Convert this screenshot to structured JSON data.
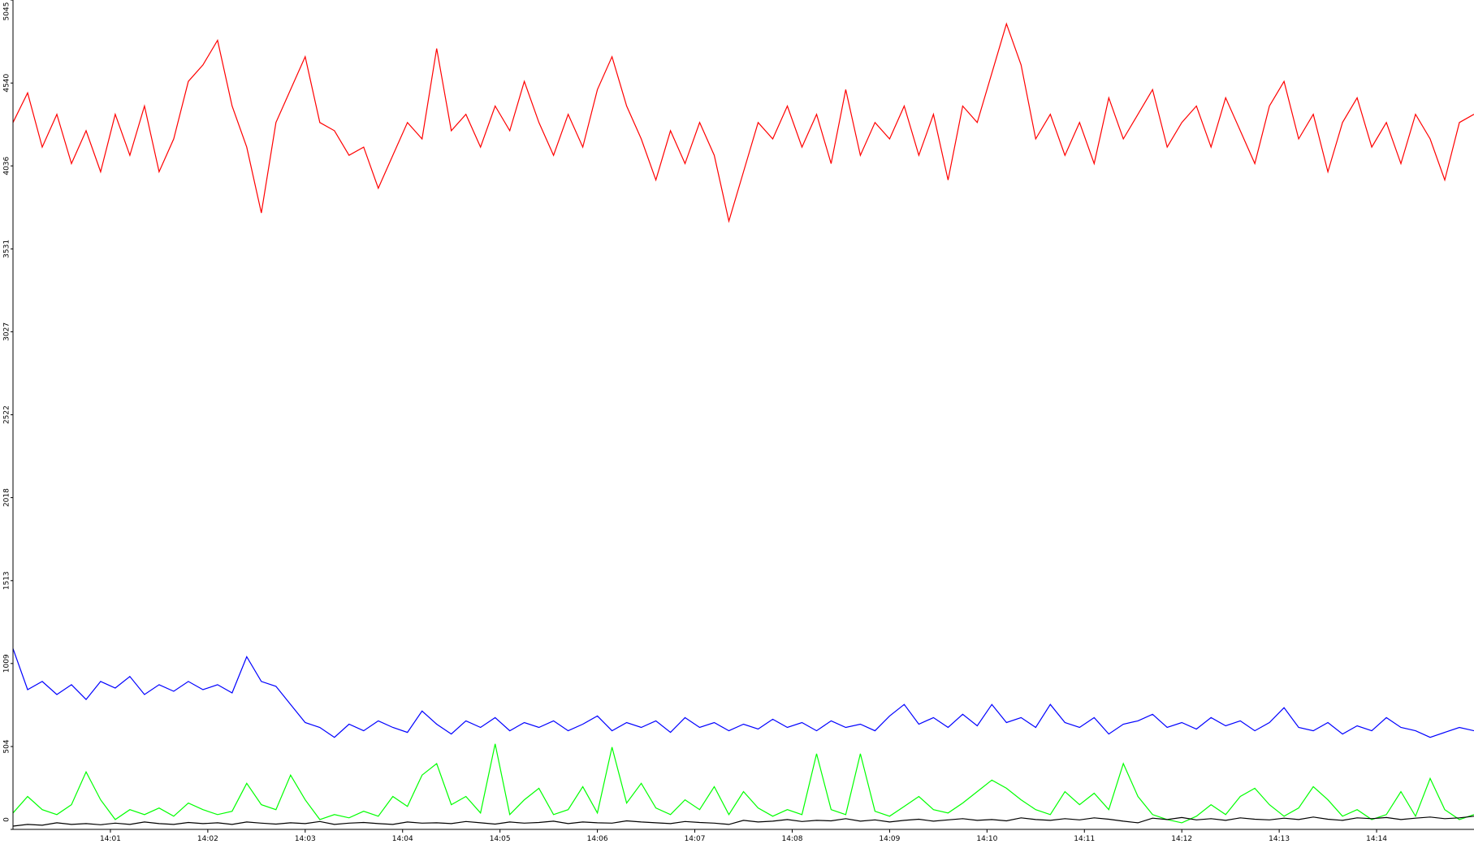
{
  "chart_data": {
    "type": "line",
    "x": [
      0,
      0.15,
      0.3,
      0.45,
      0.6,
      0.75,
      0.9,
      1.05,
      1.2,
      1.35,
      1.5,
      1.65,
      1.8,
      1.95,
      2.1,
      2.25,
      2.4,
      2.55,
      2.7,
      2.85,
      3,
      3.15,
      3.3,
      3.45,
      3.6,
      3.75,
      3.9,
      4.05,
      4.2,
      4.35,
      4.5,
      4.65,
      4.8,
      4.95,
      5.1,
      5.25,
      5.4,
      5.55,
      5.7,
      5.85,
      6,
      6.15,
      6.3,
      6.45,
      6.6,
      6.75,
      6.9,
      7.05,
      7.2,
      7.35,
      7.5,
      7.65,
      7.8,
      7.95,
      8.1,
      8.25,
      8.4,
      8.55,
      8.7,
      8.85,
      9,
      9.15,
      9.3,
      9.45,
      9.6,
      9.75,
      9.9,
      10.05,
      10.2,
      10.35,
      10.5,
      10.65,
      10.8,
      10.95,
      11.1,
      11.25,
      11.4,
      11.55,
      11.7,
      11.85,
      12,
      12.15,
      12.3,
      12.45,
      12.6,
      12.75,
      12.9,
      13.05,
      13.2,
      13.35,
      13.5,
      13.65,
      13.8,
      13.95,
      14.1,
      14.25,
      14.4,
      14.55,
      14.7,
      14.85,
      15
    ],
    "series": [
      {
        "color": "#ff0000",
        "values": [
          4300,
          4480,
          4150,
          4350,
          4050,
          4250,
          4000,
          4350,
          4100,
          4400,
          4000,
          4200,
          4550,
          4650,
          4800,
          4400,
          4150,
          3750,
          4300,
          4500,
          4700,
          4300,
          4250,
          4100,
          4150,
          3900,
          4100,
          4300,
          4200,
          4750,
          4250,
          4350,
          4150,
          4400,
          4250,
          4550,
          4300,
          4100,
          4350,
          4150,
          4500,
          4700,
          4400,
          4200,
          3950,
          4250,
          4050,
          4300,
          4100,
          3700,
          4000,
          4300,
          4200,
          4400,
          4150,
          4350,
          4050,
          4500,
          4100,
          4300,
          4200,
          4400,
          4100,
          4350,
          3950,
          4400,
          4300,
          4600,
          4900,
          4650,
          4200,
          4350,
          4100,
          4300,
          4050,
          4450,
          4200,
          4350,
          4500,
          4150,
          4300,
          4400,
          4150,
          4450,
          4250,
          4050,
          4400,
          4550,
          4200,
          4350,
          4000,
          4300,
          4450,
          4150,
          4300,
          4050,
          4350,
          4200,
          3950,
          4300,
          4350
        ]
      },
      {
        "color": "#0000ff",
        "values": [
          1100,
          850,
          900,
          820,
          880,
          790,
          900,
          860,
          930,
          820,
          880,
          840,
          900,
          850,
          880,
          830,
          1050,
          900,
          870,
          760,
          650,
          620,
          560,
          640,
          600,
          660,
          620,
          590,
          720,
          640,
          580,
          660,
          620,
          680,
          600,
          650,
          620,
          660,
          600,
          640,
          690,
          600,
          650,
          620,
          660,
          590,
          680,
          620,
          650,
          600,
          640,
          610,
          670,
          620,
          650,
          600,
          660,
          620,
          640,
          600,
          690,
          760,
          640,
          680,
          620,
          700,
          630,
          760,
          650,
          680,
          620,
          760,
          650,
          620,
          680,
          580,
          640,
          660,
          700,
          620,
          650,
          610,
          680,
          630,
          660,
          600,
          650,
          740,
          620,
          600,
          650,
          580,
          630,
          600,
          680,
          620,
          600,
          560,
          590,
          620,
          600
        ]
      },
      {
        "color": "#00ff00",
        "values": [
          100,
          200,
          120,
          90,
          150,
          350,
          180,
          60,
          120,
          90,
          130,
          80,
          160,
          120,
          90,
          110,
          280,
          150,
          120,
          330,
          180,
          60,
          90,
          70,
          110,
          80,
          200,
          140,
          330,
          400,
          150,
          200,
          100,
          520,
          90,
          180,
          250,
          90,
          120,
          260,
          100,
          500,
          160,
          280,
          130,
          90,
          180,
          120,
          260,
          90,
          230,
          130,
          80,
          120,
          90,
          460,
          120,
          90,
          460,
          110,
          80,
          140,
          200,
          120,
          100,
          160,
          230,
          300,
          250,
          180,
          120,
          90,
          230,
          150,
          220,
          120,
          400,
          200,
          90,
          60,
          40,
          80,
          150,
          90,
          200,
          250,
          150,
          80,
          130,
          260,
          180,
          80,
          120,
          60,
          90,
          230,
          80,
          310,
          120,
          60,
          90
        ]
      },
      {
        "color": "#000000",
        "values": [
          20,
          30,
          25,
          40,
          30,
          35,
          28,
          38,
          30,
          45,
          35,
          30,
          42,
          35,
          40,
          30,
          45,
          38,
          32,
          40,
          35,
          48,
          30,
          38,
          42,
          35,
          30,
          45,
          38,
          40,
          35,
          48,
          40,
          32,
          45,
          38,
          42,
          50,
          35,
          45,
          40,
          38,
          52,
          45,
          40,
          35,
          48,
          42,
          38,
          30,
          55,
          45,
          50,
          60,
          48,
          55,
          52,
          65,
          50,
          58,
          45,
          55,
          62,
          50,
          58,
          65,
          55,
          60,
          52,
          70,
          60,
          55,
          65,
          58,
          70,
          62,
          50,
          40,
          68,
          60,
          72,
          58,
          65,
          55,
          70,
          62,
          58,
          68,
          60,
          75,
          62,
          55,
          70,
          65,
          72,
          60,
          68,
          75,
          65,
          70,
          80
        ]
      }
    ],
    "xlim": [
      0,
      15
    ],
    "xticks": [
      {
        "value": 1,
        "label": "14:01"
      },
      {
        "value": 2,
        "label": "14:02"
      },
      {
        "value": 3,
        "label": "14:03"
      },
      {
        "value": 4,
        "label": "14:04"
      },
      {
        "value": 5,
        "label": "14:05"
      },
      {
        "value": 6,
        "label": "14:06"
      },
      {
        "value": 7,
        "label": "14:07"
      },
      {
        "value": 8,
        "label": "14:08"
      },
      {
        "value": 9,
        "label": "14:09"
      },
      {
        "value": 10,
        "label": "14:10"
      },
      {
        "value": 11,
        "label": "14:11"
      },
      {
        "value": 12,
        "label": "14:12"
      },
      {
        "value": 13,
        "label": "14:13"
      },
      {
        "value": 14,
        "label": "14:14"
      }
    ],
    "ylim": [
      0,
      5045
    ],
    "yticks": [
      0,
      504,
      1009,
      1513,
      2018,
      2522,
      3027,
      3531,
      4036,
      4540,
      5045
    ]
  }
}
